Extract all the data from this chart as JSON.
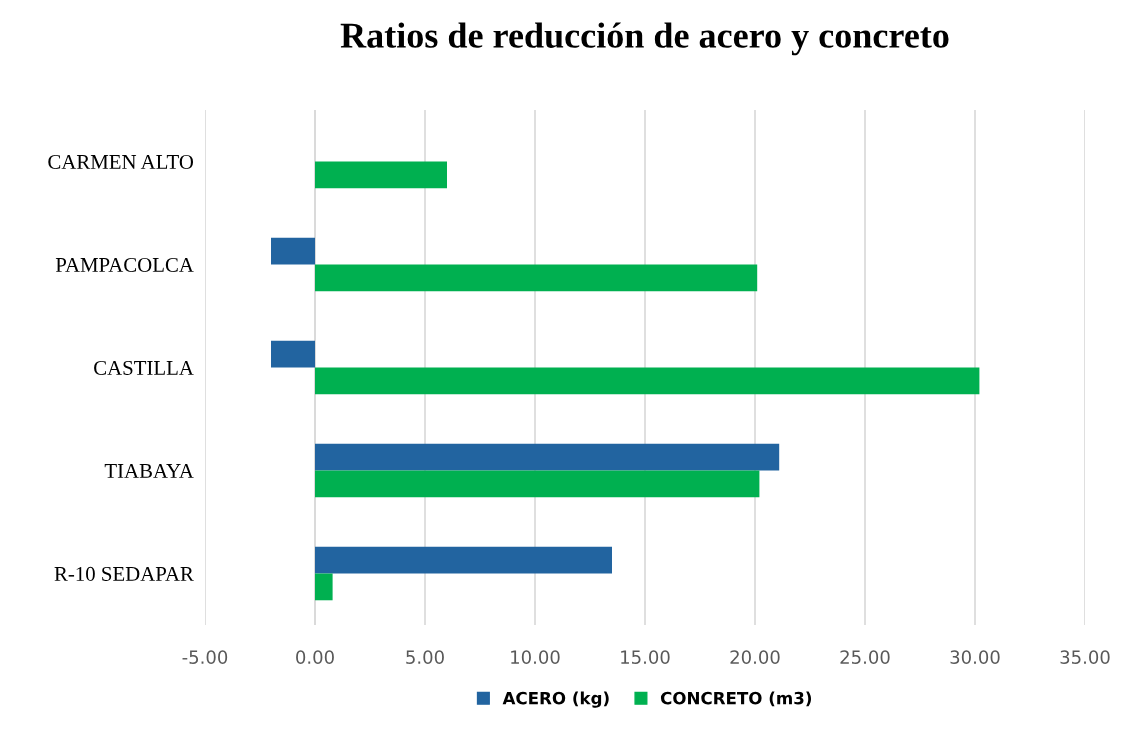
{
  "chart_data": {
    "type": "bar",
    "orientation": "horizontal",
    "title": "Ratios de reducción de acero y concreto",
    "categories": [
      "CARMEN ALTO",
      "PAMPACOLCA",
      "CASTILLA",
      "TIABAYA",
      "R-10 SEDAPAR"
    ],
    "series": [
      {
        "name": "ACERO (kg)",
        "color": "#2264a0",
        "values": [
          null,
          -2.0,
          -2.0,
          21.1,
          13.5
        ]
      },
      {
        "name": "CONCRETO (m3)",
        "color": "#00b050",
        "values": [
          6.0,
          20.1,
          30.2,
          20.2,
          0.8
        ]
      }
    ],
    "xlim": [
      -5,
      35
    ],
    "xticks": [
      {
        "value": -5,
        "label": "-5.00"
      },
      {
        "value": 0,
        "label": "0.00"
      },
      {
        "value": 5,
        "label": "5.00"
      },
      {
        "value": 10,
        "label": "10.00"
      },
      {
        "value": 15,
        "label": "15.00"
      },
      {
        "value": 20,
        "label": "20.00"
      },
      {
        "value": 25,
        "label": "25.00"
      },
      {
        "value": 30,
        "label": "30.00"
      },
      {
        "value": 35,
        "label": "35.00"
      }
    ],
    "grid": "x",
    "legend": "bottom"
  }
}
